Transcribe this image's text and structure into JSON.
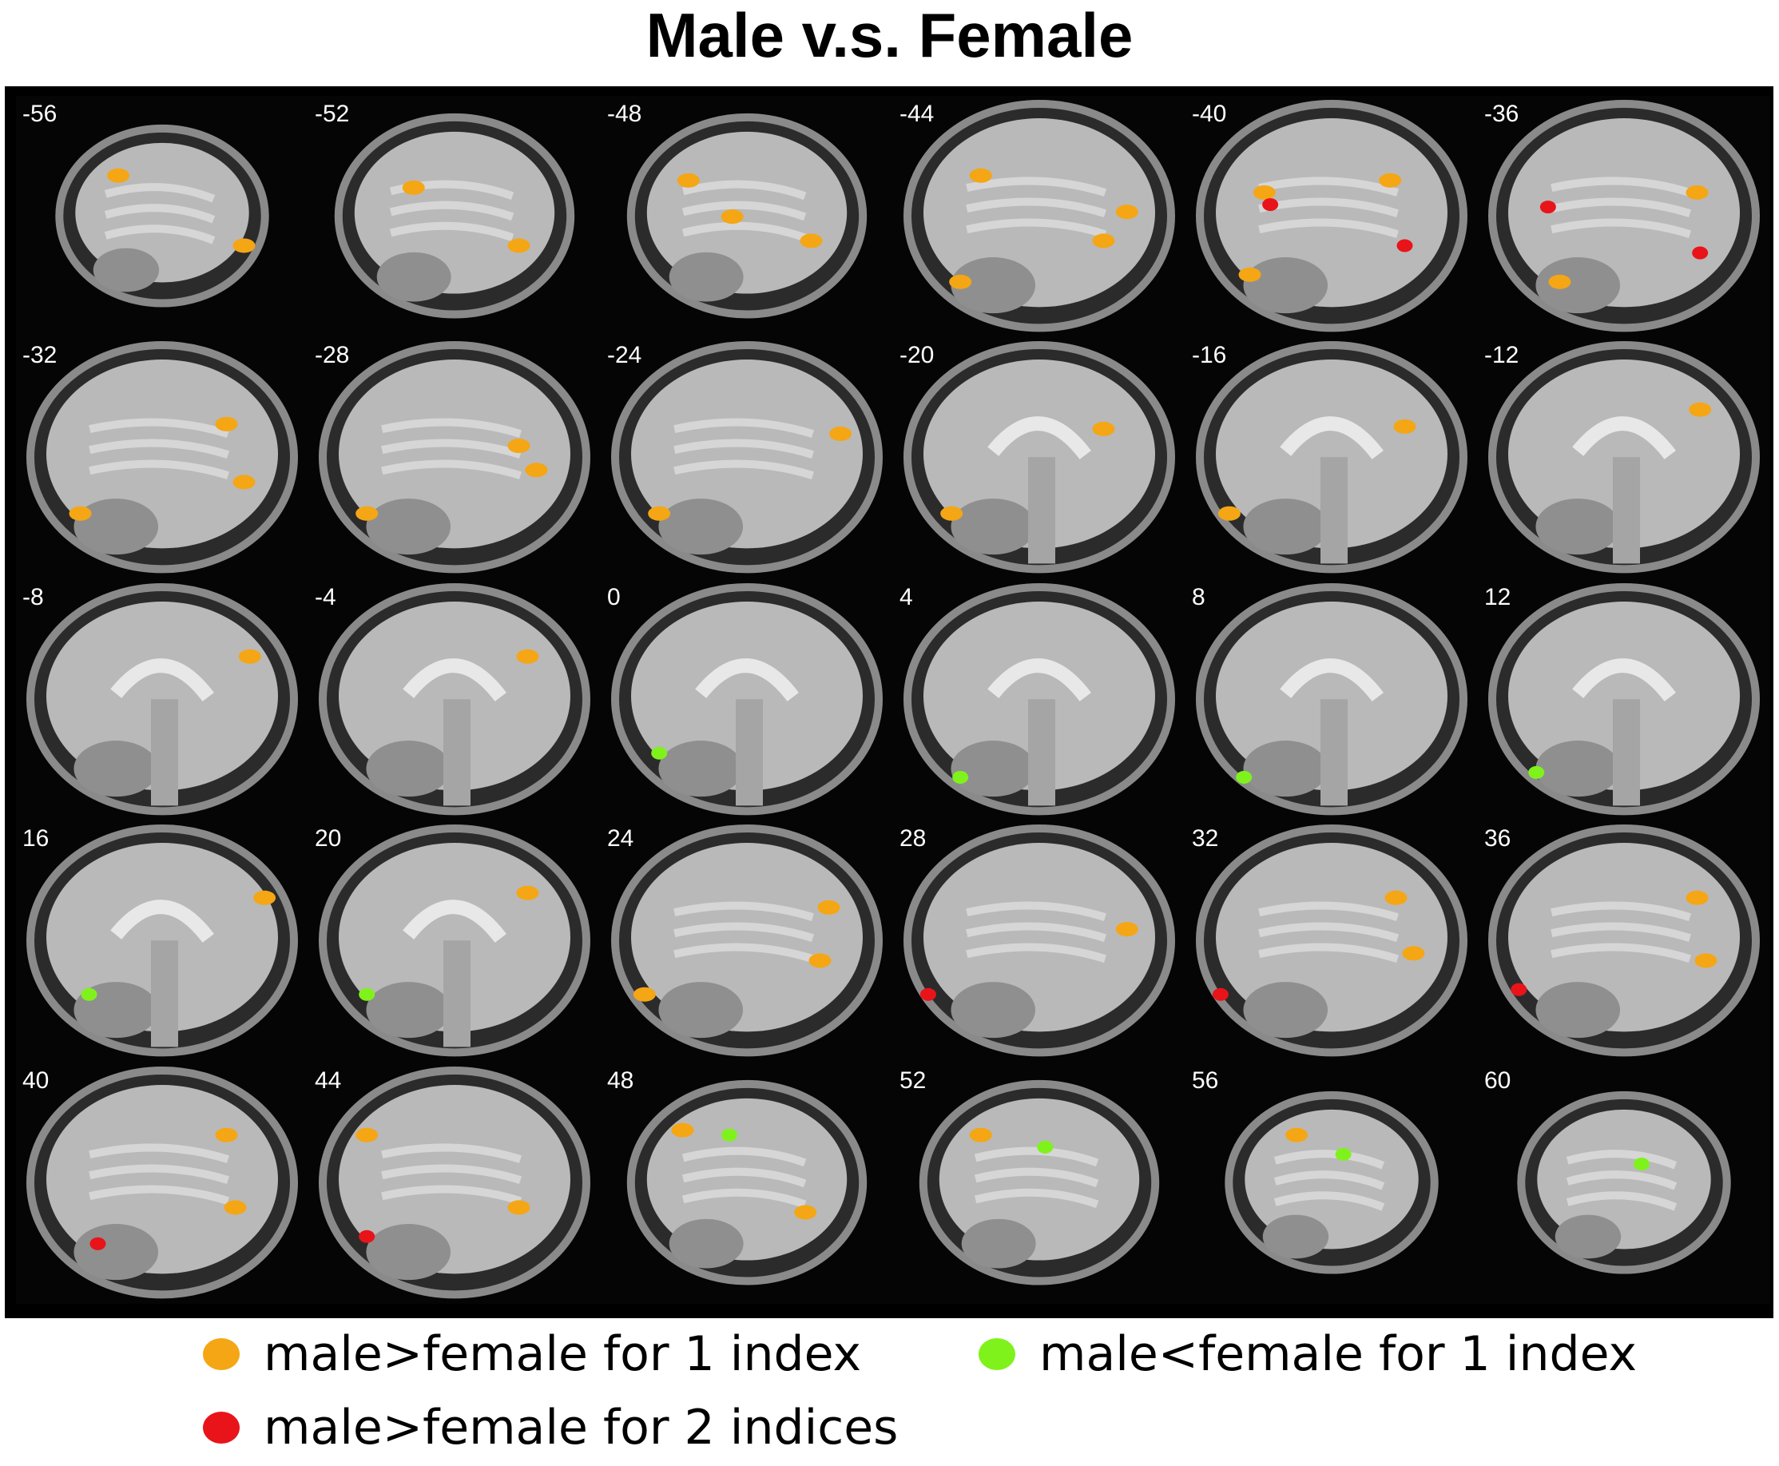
{
  "title": "Male v.s. Female",
  "colors": {
    "male_gt_female_1": "#f5a614",
    "male_gt_female_2": "#e8141a",
    "male_lt_female_1": "#7ff21c",
    "background": "#000000"
  },
  "slices": [
    {
      "label": "-56",
      "blobs": [
        [
          "o",
          0.35,
          0.33
        ],
        [
          "o",
          0.78,
          0.62
        ]
      ]
    },
    {
      "label": "-52",
      "blobs": [
        [
          "o",
          0.36,
          0.38
        ],
        [
          "o",
          0.72,
          0.62
        ]
      ]
    },
    {
      "label": "-48",
      "blobs": [
        [
          "o",
          0.3,
          0.35
        ],
        [
          "o",
          0.72,
          0.6
        ],
        [
          "o",
          0.45,
          0.5
        ]
      ]
    },
    {
      "label": "-44",
      "blobs": [
        [
          "o",
          0.3,
          0.33
        ],
        [
          "o",
          0.72,
          0.6
        ],
        [
          "o",
          0.8,
          0.48
        ],
        [
          "o",
          0.23,
          0.77
        ]
      ]
    },
    {
      "label": "-40",
      "blobs": [
        [
          "o",
          0.27,
          0.4
        ],
        [
          "r",
          0.29,
          0.45
        ],
        [
          "o",
          0.7,
          0.35
        ],
        [
          "r",
          0.75,
          0.62
        ],
        [
          "o",
          0.22,
          0.74
        ]
      ]
    },
    {
      "label": "-36",
      "blobs": [
        [
          "r",
          0.24,
          0.46
        ],
        [
          "o",
          0.75,
          0.4
        ],
        [
          "r",
          0.76,
          0.65
        ],
        [
          "o",
          0.28,
          0.77
        ]
      ]
    },
    {
      "label": "-32",
      "blobs": [
        [
          "o",
          0.78,
          0.6
        ],
        [
          "o",
          0.72,
          0.36
        ],
        [
          "o",
          0.22,
          0.73
        ]
      ]
    },
    {
      "label": "-28",
      "blobs": [
        [
          "o",
          0.72,
          0.45
        ],
        [
          "o",
          0.78,
          0.55
        ],
        [
          "o",
          0.2,
          0.73
        ]
      ]
    },
    {
      "label": "-24",
      "blobs": [
        [
          "o",
          0.82,
          0.4
        ],
        [
          "o",
          0.2,
          0.73
        ]
      ]
    },
    {
      "label": "-20",
      "blobs": [
        [
          "o",
          0.72,
          0.38
        ],
        [
          "o",
          0.2,
          0.73
        ]
      ]
    },
    {
      "label": "-16",
      "blobs": [
        [
          "o",
          0.75,
          0.37
        ],
        [
          "o",
          0.15,
          0.73
        ]
      ]
    },
    {
      "label": "-12",
      "blobs": [
        [
          "o",
          0.76,
          0.3
        ]
      ]
    },
    {
      "label": "-8",
      "blobs": [
        [
          "o",
          0.8,
          0.32
        ]
      ]
    },
    {
      "label": "-4",
      "blobs": [
        [
          "o",
          0.75,
          0.32
        ]
      ]
    },
    {
      "label": "0",
      "blobs": [
        [
          "g",
          0.2,
          0.72
        ]
      ]
    },
    {
      "label": "4",
      "blobs": [
        [
          "g",
          0.23,
          0.82
        ]
      ]
    },
    {
      "label": "8",
      "blobs": [
        [
          "g",
          0.2,
          0.82
        ]
      ]
    },
    {
      "label": "12",
      "blobs": [
        [
          "g",
          0.2,
          0.8
        ]
      ]
    },
    {
      "label": "16",
      "blobs": [
        [
          "g",
          0.25,
          0.72
        ],
        [
          "o",
          0.85,
          0.32
        ]
      ]
    },
    {
      "label": "20",
      "blobs": [
        [
          "g",
          0.2,
          0.72
        ],
        [
          "o",
          0.75,
          0.3
        ]
      ]
    },
    {
      "label": "24",
      "blobs": [
        [
          "o",
          0.78,
          0.36
        ],
        [
          "o",
          0.75,
          0.58
        ],
        [
          "o",
          0.15,
          0.72
        ]
      ]
    },
    {
      "label": "28",
      "blobs": [
        [
          "r",
          0.12,
          0.72
        ],
        [
          "o",
          0.8,
          0.45
        ]
      ]
    },
    {
      "label": "32",
      "blobs": [
        [
          "r",
          0.12,
          0.72
        ],
        [
          "o",
          0.72,
          0.32
        ],
        [
          "o",
          0.78,
          0.55
        ]
      ]
    },
    {
      "label": "36",
      "blobs": [
        [
          "r",
          0.14,
          0.7
        ],
        [
          "o",
          0.75,
          0.32
        ],
        [
          "o",
          0.78,
          0.58
        ]
      ]
    },
    {
      "label": "40",
      "blobs": [
        [
          "r",
          0.28,
          0.75
        ],
        [
          "o",
          0.72,
          0.3
        ],
        [
          "o",
          0.75,
          0.6
        ]
      ]
    },
    {
      "label": "44",
      "blobs": [
        [
          "r",
          0.2,
          0.72
        ],
        [
          "o",
          0.2,
          0.3
        ],
        [
          "o",
          0.72,
          0.6
        ]
      ]
    },
    {
      "label": "48",
      "blobs": [
        [
          "o",
          0.28,
          0.28
        ],
        [
          "g",
          0.44,
          0.3
        ],
        [
          "o",
          0.7,
          0.62
        ]
      ]
    },
    {
      "label": "52",
      "blobs": [
        [
          "g",
          0.52,
          0.35
        ],
        [
          "o",
          0.3,
          0.3
        ]
      ]
    },
    {
      "label": "56",
      "blobs": [
        [
          "g",
          0.54,
          0.38
        ],
        [
          "o",
          0.38,
          0.3
        ]
      ]
    },
    {
      "label": "60",
      "blobs": [
        [
          "g",
          0.56,
          0.42
        ]
      ]
    }
  ],
  "legend": [
    {
      "key": "male_gt_female_1",
      "label": "male>female for 1 index"
    },
    {
      "key": "male_lt_female_1",
      "label": "male<female for 1 index"
    },
    {
      "key": "male_gt_female_2",
      "label": "male>female for 2 indices"
    }
  ]
}
